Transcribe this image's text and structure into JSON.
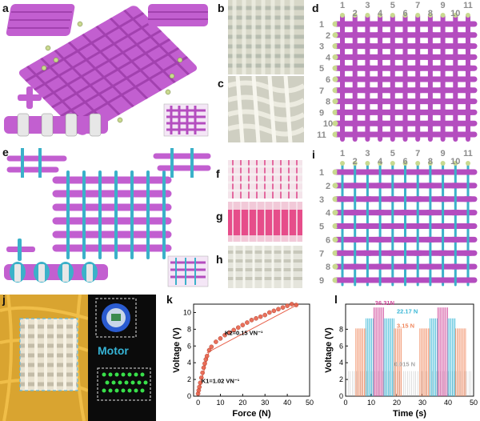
{
  "panel_labels": {
    "a": "a",
    "b": "b",
    "c": "c",
    "d": "d",
    "e": "e",
    "f": "f",
    "g": "g",
    "h": "h",
    "i": "i",
    "j": "j",
    "k": "k",
    "l": "l"
  },
  "panel_d": {
    "top_numbers": [
      "1",
      "2",
      "3",
      "4",
      "5",
      "6",
      "7",
      "8",
      "9",
      "10",
      "11"
    ],
    "left_numbers": [
      "1",
      "2",
      "3",
      "4",
      "5",
      "6",
      "7",
      "8",
      "9",
      "10",
      "11"
    ]
  },
  "panel_i": {
    "top_numbers": [
      "1",
      "2",
      "3",
      "4",
      "5",
      "6",
      "7",
      "8",
      "9",
      "10",
      "11"
    ],
    "left_numbers": [
      "1",
      "2",
      "3",
      "4",
      "5",
      "6",
      "7",
      "8",
      "9"
    ]
  },
  "panel_j": {
    "motor_label": "Motor"
  },
  "colors": {
    "purple": "#b44dbf",
    "teal": "#3bb1c9",
    "tip": "#c9d98f",
    "text_gray": "#8c8c8c",
    "red": "#e8614a",
    "pink": "#d0479a",
    "cyan": "#39b7d6",
    "orange": "#f0885e",
    "gray_series": "#a7a7a7"
  },
  "chart_data": [
    {
      "panel": "k",
      "type": "scatter",
      "xlabel": "Force (N)",
      "ylabel": "Voltage (V)",
      "xlim": [
        -2,
        50
      ],
      "ylim": [
        0,
        11
      ],
      "xticks": [
        "0",
        "10",
        "20",
        "30",
        "40",
        "50"
      ],
      "yticks": [
        "0",
        "2",
        "4",
        "6",
        "8",
        "10"
      ],
      "x": [
        0,
        0.3,
        0.6,
        1,
        1.5,
        2,
        2.5,
        3,
        3.5,
        4,
        5,
        6,
        8,
        10,
        12,
        14,
        16,
        18,
        20,
        22,
        24,
        26,
        28,
        30,
        32,
        34,
        36,
        38,
        40,
        42,
        44
      ],
      "y": [
        0.3,
        0.7,
        1.1,
        1.6,
        2.2,
        2.8,
        3.4,
        3.9,
        4.4,
        4.8,
        5.5,
        5.9,
        6.5,
        6.9,
        7.3,
        7.6,
        7.9,
        8.2,
        8.5,
        8.8,
        9.1,
        9.3,
        9.5,
        9.7,
        10.0,
        10.2,
        10.4,
        10.6,
        10.8,
        11.0,
        10.9
      ],
      "annotations": [
        "K1=1.02 VN⁻¹",
        "K2=0.15 VN⁻¹"
      ]
    },
    {
      "panel": "l",
      "type": "line",
      "xlabel": "Time (s)",
      "ylabel": "Voltage (V)",
      "xlim": [
        0,
        50
      ],
      "ylim": [
        0,
        11
      ],
      "xticks": [
        "0",
        "10",
        "20",
        "30",
        "40",
        "50"
      ],
      "yticks": [
        "0",
        "2",
        "4",
        "6",
        "8"
      ],
      "series": [
        {
          "name": "36.31N",
          "peak": 10.6
        },
        {
          "name": "22.17 N",
          "peak": 9.3
        },
        {
          "name": "3.15 N",
          "peak": 8.1
        },
        {
          "name": "0.015 N",
          "peak": 3.0
        }
      ]
    }
  ]
}
